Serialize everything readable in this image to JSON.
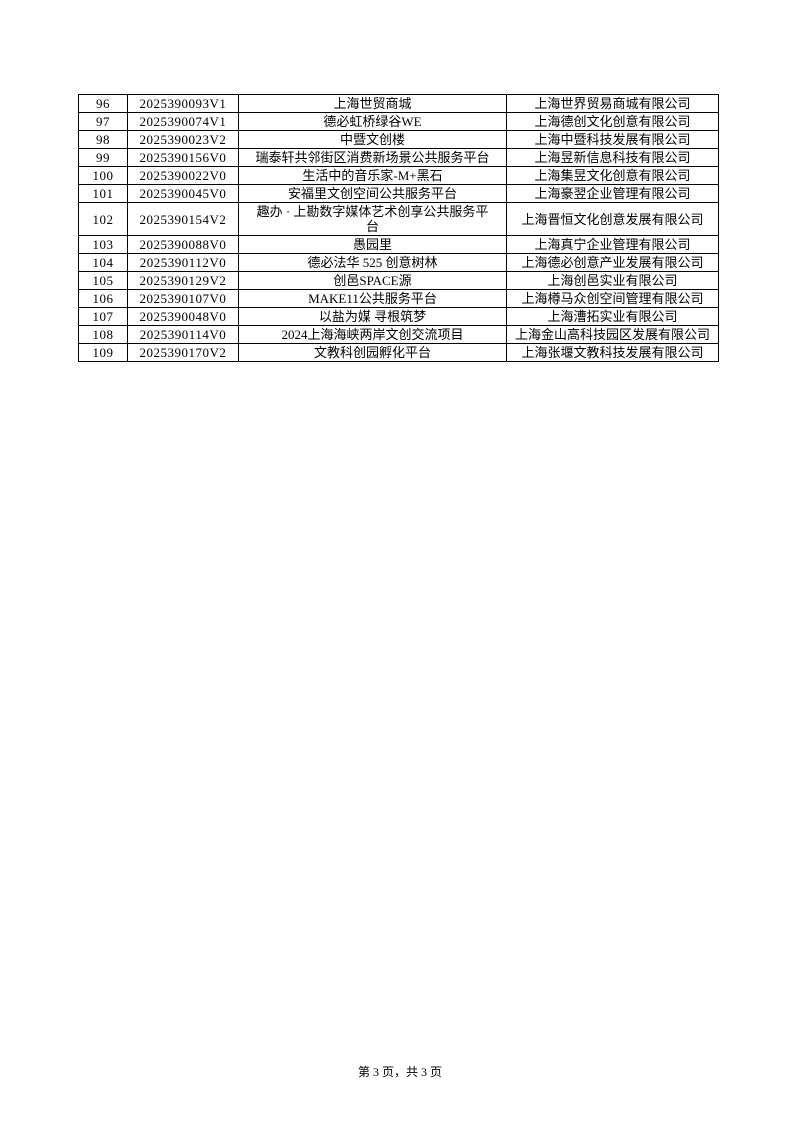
{
  "table": {
    "rows": [
      {
        "no": "96",
        "code": "2025390093V1",
        "name": "上海世贸商城",
        "company": "上海世界贸易商城有限公司"
      },
      {
        "no": "97",
        "code": "2025390074V1",
        "name": "德必虹桥绿谷WE",
        "company": "上海德创文化创意有限公司"
      },
      {
        "no": "98",
        "code": "2025390023V2",
        "name": "中暨文创楼",
        "company": "上海中暨科技发展有限公司"
      },
      {
        "no": "99",
        "code": "2025390156V0",
        "name": "瑞泰轩共邻街区消费新场景公共服务平台",
        "company": "上海昱新信息科技有限公司"
      },
      {
        "no": "100",
        "code": "2025390022V0",
        "name": "生活中的音乐家-M+黑石",
        "company": "上海集昱文化创意有限公司"
      },
      {
        "no": "101",
        "code": "2025390045V0",
        "name": "安福里文创空间公共服务平台",
        "company": "上海豪翌企业管理有限公司"
      },
      {
        "no": "102",
        "code": "2025390154V2",
        "name": "趣办 · 上勘数字媒体艺术创享公共服务平\n台",
        "company": "上海晋恒文化创意发展有限公司"
      },
      {
        "no": "103",
        "code": "2025390088V0",
        "name": "愚园里",
        "company": "上海真宁企业管理有限公司"
      },
      {
        "no": "104",
        "code": "2025390112V0",
        "name": "德必法华 525 创意树林",
        "company": "上海德必创意产业发展有限公司"
      },
      {
        "no": "105",
        "code": "2025390129V2",
        "name": "创邑SPACE源",
        "company": "上海创邑实业有限公司"
      },
      {
        "no": "106",
        "code": "2025390107V0",
        "name": "MAKE11公共服务平台",
        "company": "上海樽马众创空间管理有限公司"
      },
      {
        "no": "107",
        "code": "2025390048V0",
        "name": "以盐为媒 寻根筑梦",
        "company": "上海漕拓实业有限公司"
      },
      {
        "no": "108",
        "code": "2025390114V0",
        "name": "2024上海海峡两岸文创交流项目",
        "company": "上海金山高科技园区发展有限公司"
      },
      {
        "no": "109",
        "code": "2025390170V2",
        "name": "文教科创园孵化平台",
        "company": "上海张堰文教科技发展有限公司"
      }
    ]
  },
  "footer": {
    "text": "第 3 页，共 3 页"
  }
}
